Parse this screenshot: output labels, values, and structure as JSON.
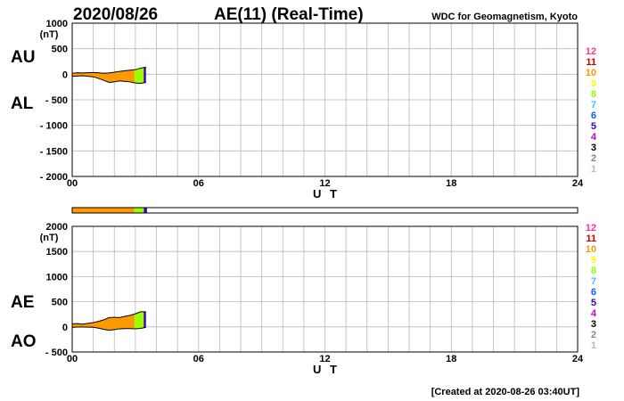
{
  "header": {
    "date": "2020/08/26",
    "title": "AE(11) (Real-Time)",
    "org": "WDC for Geomagnetism, Kyoto"
  },
  "footer": {
    "created": "[Created at 2020-08-26 03:40UT]"
  },
  "colors": {
    "fill": "#ff9900",
    "grid": "#b8b8b8",
    "trace": "#000000",
    "legend": [
      "#bbbbbb",
      "#888888",
      "#000000",
      "#cc00cc",
      "#3300cc",
      "#0066ff",
      "#33ccff",
      "#99ff00",
      "#ffff00",
      "#ff9900",
      "#cc0000",
      "#ff3399"
    ]
  },
  "chart_data": [
    {
      "id": "upper",
      "type": "area",
      "title": "",
      "xlabel": "U T",
      "side_labels": [
        "AU",
        "AL"
      ],
      "unit": "(nT)",
      "x_ticks": [
        "00",
        "06",
        "12",
        "18",
        "24"
      ],
      "xlim": [
        0,
        24
      ],
      "ylim": [
        -2000,
        1000
      ],
      "y_ticks": [
        "1000",
        "500",
        "0",
        "- 500",
        "- 1000",
        "- 1500",
        "- 2000"
      ],
      "grid": true,
      "legend": [
        "1",
        "2",
        "3",
        "4",
        "5",
        "6",
        "7",
        "8",
        "9",
        "10",
        "11",
        "12"
      ],
      "legend_placement": "right",
      "x": [
        0.0,
        0.25,
        0.5,
        0.75,
        1.0,
        1.25,
        1.5,
        1.75,
        2.0,
        2.25,
        2.5,
        2.75,
        3.0,
        3.25,
        3.5
      ],
      "series": [
        {
          "name": "AU",
          "values": [
            20,
            30,
            25,
            30,
            35,
            30,
            20,
            25,
            40,
            55,
            70,
            80,
            90,
            120,
            140
          ]
        },
        {
          "name": "AL",
          "values": [
            -40,
            -35,
            -30,
            -40,
            -50,
            -80,
            -120,
            -160,
            -150,
            -130,
            -140,
            -150,
            -170,
            -180,
            -160
          ]
        }
      ]
    },
    {
      "id": "lower",
      "type": "area",
      "title": "",
      "xlabel": "U T",
      "side_labels": [
        "AE",
        "AO"
      ],
      "unit": "(nT)",
      "x_ticks": [
        "00",
        "06",
        "12",
        "18",
        "24"
      ],
      "xlim": [
        0,
        24
      ],
      "ylim": [
        -500,
        2000
      ],
      "y_ticks": [
        "2000",
        "1500",
        "1000",
        "500",
        "0",
        "- 500"
      ],
      "grid": true,
      "legend": [
        "1",
        "2",
        "3",
        "4",
        "5",
        "6",
        "7",
        "8",
        "9",
        "10",
        "11",
        "12"
      ],
      "legend_placement": "right",
      "x": [
        0.0,
        0.25,
        0.5,
        0.75,
        1.0,
        1.25,
        1.5,
        1.75,
        2.0,
        2.25,
        2.5,
        2.75,
        3.0,
        3.25,
        3.5
      ],
      "series": [
        {
          "name": "AE",
          "values": [
            60,
            65,
            55,
            70,
            85,
            110,
            140,
            185,
            190,
            185,
            210,
            230,
            260,
            300,
            300
          ]
        },
        {
          "name": "AO",
          "values": [
            -10,
            -3,
            -3,
            -5,
            -8,
            -25,
            -50,
            -68,
            -55,
            -38,
            -35,
            -35,
            -40,
            -30,
            -10
          ]
        }
      ]
    }
  ],
  "coverage_bar": {
    "segments": [
      {
        "x_start": 0.0,
        "x_end": 2.95,
        "color": "#ff9900"
      },
      {
        "x_start": 2.95,
        "x_end": 3.4,
        "color": "#99ff00"
      },
      {
        "x_start": 3.4,
        "x_end": 3.55,
        "color": "#3300cc"
      }
    ]
  }
}
